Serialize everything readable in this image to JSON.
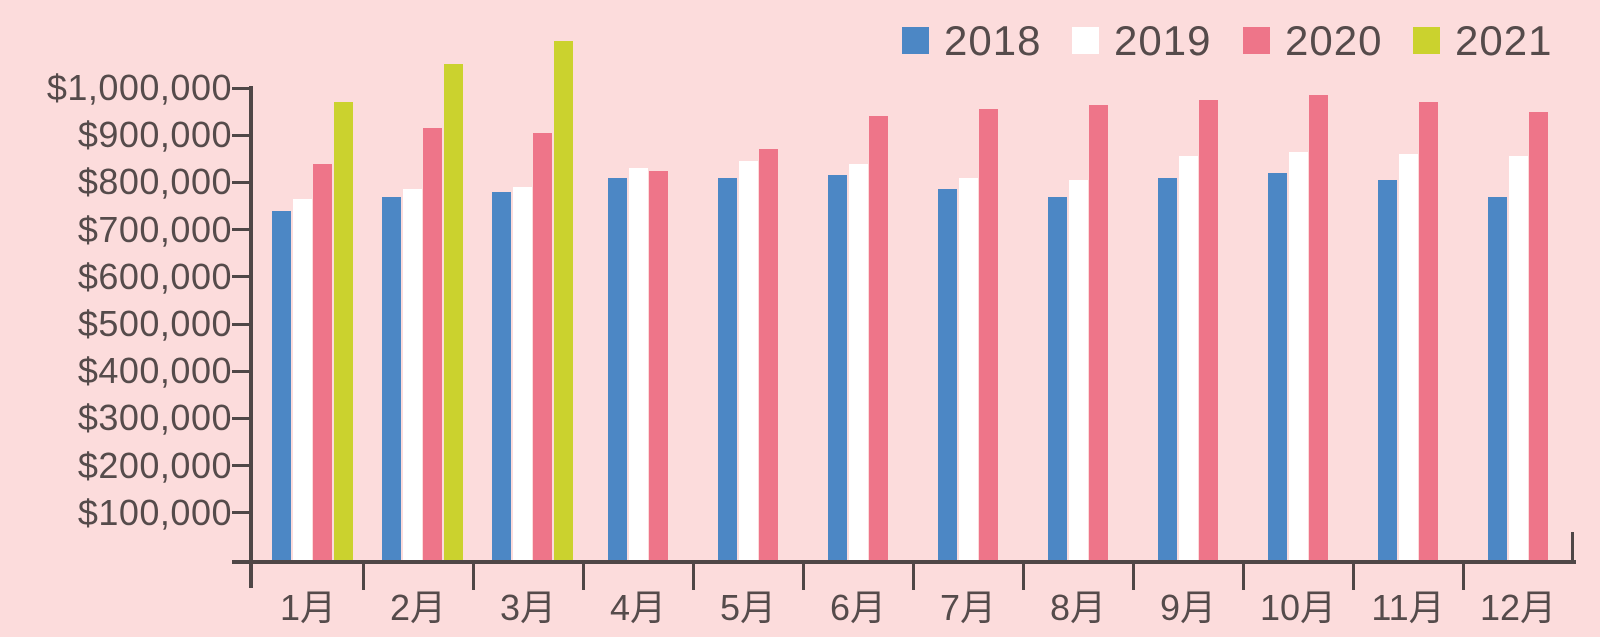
{
  "colors": {
    "background": "#fcdcdc",
    "axis": "#4f4747",
    "text": "#554b4b",
    "series_2018": "#4c87c5",
    "series_2019": "#ffffff",
    "series_2020": "#ee7589",
    "series_2021": "#cbd22e"
  },
  "legend": {
    "position": "top-right",
    "entries": [
      {
        "label": "2018",
        "color": "#4c87c5"
      },
      {
        "label": "2019",
        "color": "#ffffff"
      },
      {
        "label": "2020",
        "color": "#ee7589"
      },
      {
        "label": "2021",
        "color": "#cbd22e"
      }
    ]
  },
  "chart_data": {
    "type": "bar",
    "title": "",
    "xlabel": "",
    "ylabel": "",
    "categories": [
      "1月",
      "2月",
      "3月",
      "4月",
      "5月",
      "6月",
      "7月",
      "8月",
      "9月",
      "10月",
      "11月",
      "12月"
    ],
    "series": [
      {
        "name": "2018",
        "color": "#4c87c5",
        "values": [
          740000,
          770000,
          780000,
          810000,
          810000,
          815000,
          785000,
          770000,
          810000,
          820000,
          805000,
          770000
        ]
      },
      {
        "name": "2019",
        "color": "#ffffff",
        "values": [
          765000,
          785000,
          790000,
          830000,
          845000,
          840000,
          810000,
          805000,
          855000,
          865000,
          860000,
          855000
        ]
      },
      {
        "name": "2020",
        "color": "#ee7589",
        "values": [
          840000,
          915000,
          905000,
          825000,
          870000,
          940000,
          955000,
          965000,
          975000,
          985000,
          970000,
          950000
        ]
      },
      {
        "name": "2021",
        "color": "#cbd22e",
        "values": [
          970000,
          1050000,
          1100000,
          null,
          null,
          null,
          null,
          null,
          null,
          null,
          null,
          null
        ]
      }
    ],
    "y_axis": {
      "tick_values": [
        1000000,
        900000,
        800000,
        700000,
        600000,
        500000,
        400000,
        300000,
        200000,
        100000
      ],
      "tick_labels": [
        "$1,000,000",
        "$900,000",
        "$800,000",
        "$700,000",
        "$600,000",
        "$500,000",
        "$400,000",
        "$300,000",
        "$200,000",
        "$100,000"
      ],
      "range": [
        0,
        1000000
      ],
      "currency_prefix": "$"
    },
    "grid": false,
    "legend_position": "top-right"
  }
}
